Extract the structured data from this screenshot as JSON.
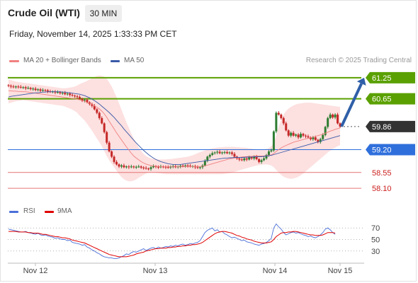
{
  "header": {
    "title": "Crude Oil (WTI)",
    "timeframe": "30 MIN",
    "timestamp": "Friday, November 14, 2025 1:33:33 PM CET"
  },
  "legend": {
    "ma20_label": "MA 20 + Bollinger Bands",
    "ma50_label": "MA 50",
    "rsi_label": "RSI",
    "rsi_ma_label": "9MA",
    "credit": "Research © 2025 Trading Central"
  },
  "colors": {
    "ma20": "#f08080",
    "ma50": "#3a5aa8",
    "bollinger_fill": "#fde0e0",
    "candle_up": "#2e7d32",
    "candle_down": "#c62828",
    "resistance": "#5aa000",
    "current": "#333333",
    "pivot": "#2f6fdc",
    "support": "#e57373",
    "rsi": "#4a6fd8",
    "rsi_ma": "#e00000",
    "arrow": "#2f5fa8"
  },
  "chart_data": [
    {
      "type": "candlestick",
      "x_ticks": [
        "Nov 12",
        "Nov 13",
        "Nov 14",
        "Nov 15"
      ],
      "ylim": [
        57.9,
        61.45
      ],
      "levels": [
        {
          "value": 61.25,
          "label": "61.25",
          "kind": "resistance"
        },
        {
          "value": 60.65,
          "label": "60.65",
          "kind": "resistance"
        },
        {
          "value": 59.86,
          "label": "59.86",
          "kind": "current"
        },
        {
          "value": 59.2,
          "label": "59.20",
          "kind": "pivot"
        },
        {
          "value": 58.55,
          "label": "58.55",
          "kind": "support"
        },
        {
          "value": 58.1,
          "label": "58.10",
          "kind": "support"
        }
      ],
      "close": [
        61.02,
        61.0,
        60.98,
        61.0,
        60.99,
        60.97,
        60.98,
        60.95,
        60.96,
        60.93,
        60.94,
        60.9,
        60.92,
        60.88,
        60.9,
        60.89,
        60.86,
        60.85,
        60.86,
        60.83,
        60.84,
        60.81,
        60.82,
        60.78,
        60.8,
        60.76,
        60.74,
        60.72,
        60.7,
        60.65,
        60.6,
        60.62,
        60.55,
        60.5,
        60.45,
        60.35,
        60.25,
        60.1,
        59.95,
        59.7,
        59.4,
        59.15,
        59.0,
        58.85,
        58.78,
        58.72,
        58.75,
        58.7,
        58.72,
        58.7,
        58.72,
        58.7,
        58.71,
        58.72,
        58.69,
        58.68,
        58.66,
        58.65,
        58.7,
        58.73,
        58.71,
        58.7,
        58.72,
        58.71,
        58.7,
        58.69,
        58.72,
        58.73,
        58.7,
        58.72,
        58.74,
        58.73,
        58.75,
        58.74,
        58.72,
        58.73,
        58.7,
        58.68,
        58.7,
        58.75,
        58.88,
        59.0,
        59.05,
        59.1,
        59.12,
        59.14,
        59.1,
        59.12,
        59.13,
        59.1,
        59.12,
        59.08,
        59.0,
        58.95,
        58.92,
        58.9,
        58.95,
        58.92,
        58.98,
        58.95,
        59.0,
        58.93,
        58.85,
        58.9,
        58.95,
        59.05,
        59.15,
        59.18,
        59.72,
        60.25,
        60.2,
        60.1,
        59.95,
        59.75,
        59.6,
        59.68,
        59.6,
        59.63,
        59.55,
        59.65,
        59.6,
        59.58,
        59.55,
        59.5,
        59.55,
        59.48,
        59.42,
        59.5,
        59.62,
        59.85,
        60.1,
        60.2,
        60.12,
        60.2,
        59.95,
        59.86
      ],
      "ma20": [
        60.88,
        60.88,
        60.87,
        60.87,
        60.86,
        60.86,
        60.85,
        60.85,
        60.84,
        60.83,
        60.82,
        60.81,
        60.8,
        60.79,
        60.78,
        60.77,
        60.76,
        60.75,
        60.74,
        60.73,
        60.72,
        60.71,
        60.7,
        60.69,
        60.68,
        60.67,
        60.66,
        60.65,
        60.64,
        60.62,
        60.6,
        60.58,
        60.55,
        60.52,
        60.49,
        60.45,
        60.41,
        60.36,
        60.3,
        60.22,
        60.12,
        60.01,
        59.9,
        59.79,
        59.68,
        59.58,
        59.48,
        59.38,
        59.28,
        59.19,
        59.1,
        59.02,
        58.96,
        58.91,
        58.86,
        58.82,
        58.79,
        58.77,
        58.75,
        58.74,
        58.73,
        58.72,
        58.72,
        58.71,
        58.71,
        58.71,
        58.71,
        58.71,
        58.71,
        58.71,
        58.71,
        58.71,
        58.72,
        58.72,
        58.72,
        58.72,
        58.72,
        58.72,
        58.72,
        58.73,
        58.74,
        58.76,
        58.78,
        58.8,
        58.82,
        58.84,
        58.86,
        58.88,
        58.9,
        58.92,
        58.94,
        58.95,
        58.96,
        58.97,
        58.98,
        58.99,
        59.0,
        59.0,
        59.01,
        59.01,
        59.02,
        59.02,
        59.02,
        59.02,
        59.02,
        59.03,
        59.04,
        59.05,
        59.09,
        59.15,
        59.2,
        59.25,
        59.29,
        59.32,
        59.35,
        59.38,
        59.41,
        59.43,
        59.45,
        59.47,
        59.49,
        59.51,
        59.52,
        59.54,
        59.56,
        59.58,
        59.6,
        59.62,
        59.64,
        59.67,
        59.7,
        59.73,
        59.75,
        59.78,
        59.8,
        59.82
      ],
      "ma50": [
        60.7,
        60.72,
        60.73,
        60.74,
        60.75,
        60.76,
        60.77,
        60.78,
        60.79,
        60.8,
        60.81,
        60.82,
        60.82,
        60.83,
        60.84,
        60.84,
        60.85,
        60.85,
        60.85,
        60.85,
        60.85,
        60.85,
        60.84,
        60.84,
        60.83,
        60.82,
        60.81,
        60.8,
        60.79,
        60.78,
        60.76,
        60.74,
        60.71,
        60.68,
        60.64,
        60.6,
        60.55,
        60.5,
        60.44,
        60.38,
        60.32,
        60.26,
        60.19,
        60.12,
        60.04,
        59.96,
        59.88,
        59.79,
        59.71,
        59.63,
        59.55,
        59.47,
        59.39,
        59.32,
        59.25,
        59.18,
        59.12,
        59.06,
        59.01,
        58.96,
        58.92,
        58.89,
        58.86,
        58.84,
        58.82,
        58.8,
        58.79,
        58.78,
        58.78,
        58.78,
        58.78,
        58.79,
        58.8,
        58.81,
        58.82,
        58.83,
        58.84,
        58.85,
        58.86,
        58.87,
        58.88,
        58.89,
        58.9,
        58.91,
        58.92,
        58.93,
        58.94,
        58.95,
        58.96,
        58.96,
        58.97,
        58.97,
        58.98,
        58.98,
        58.98,
        58.98,
        58.98,
        58.99,
        58.99,
        58.99,
        59.0,
        59.0,
        59.0,
        59.0,
        59.01,
        59.02,
        59.03,
        59.04,
        59.06,
        59.08,
        59.1,
        59.12,
        59.14,
        59.16,
        59.18,
        59.2,
        59.22,
        59.24,
        59.26,
        59.28,
        59.3,
        59.32,
        59.34,
        59.36,
        59.38,
        59.4,
        59.42,
        59.44,
        59.46,
        59.48,
        59.5,
        59.52,
        59.54,
        59.56,
        59.58,
        59.6
      ],
      "bb_upper": [
        61.2,
        61.18,
        61.16,
        61.14,
        61.13,
        61.12,
        61.11,
        61.1,
        61.09,
        61.08,
        61.07,
        61.06,
        61.05,
        61.04,
        61.03,
        61.02,
        61.01,
        61.0,
        60.99,
        60.98,
        60.97,
        60.96,
        60.95,
        60.95,
        60.96,
        60.97,
        60.98,
        61.0,
        61.03,
        61.07,
        61.1,
        61.13,
        61.16,
        61.2,
        61.24,
        61.27,
        61.3,
        61.31,
        61.3,
        61.28,
        61.22,
        61.12,
        61.0,
        60.85,
        60.7,
        60.52,
        60.34,
        60.16,
        59.98,
        59.82,
        59.66,
        59.52,
        59.38,
        59.26,
        59.16,
        59.08,
        59.02,
        58.98,
        58.95,
        58.94,
        58.93,
        58.92,
        58.92,
        58.92,
        58.92,
        58.93,
        58.93,
        58.94,
        58.95,
        58.96,
        58.97,
        58.98,
        58.99,
        59.0,
        59.02,
        59.04,
        59.07,
        59.1,
        59.13,
        59.15,
        59.18,
        59.2,
        59.22,
        59.24,
        59.25,
        59.26,
        59.27,
        59.27,
        59.28,
        59.28,
        59.28,
        59.28,
        59.28,
        59.27,
        59.27,
        59.26,
        59.26,
        59.25,
        59.24,
        59.23,
        59.22,
        59.21,
        59.2,
        59.2,
        59.21,
        59.22,
        59.25,
        59.3,
        59.4,
        59.6,
        59.85,
        60.05,
        60.2,
        60.3,
        60.37,
        60.42,
        60.46,
        60.49,
        60.51,
        60.52,
        60.53,
        60.54,
        60.54,
        60.54,
        60.53,
        60.52,
        60.51,
        60.5,
        60.49,
        60.48,
        60.47,
        60.46,
        60.45,
        60.44,
        60.43,
        60.42
      ],
      "bb_lower": [
        60.52,
        60.54,
        60.56,
        60.58,
        60.59,
        60.6,
        60.61,
        60.6,
        60.59,
        60.58,
        60.57,
        60.56,
        60.55,
        60.54,
        60.53,
        60.52,
        60.51,
        60.5,
        60.49,
        60.48,
        60.47,
        60.46,
        60.45,
        60.43,
        60.4,
        60.37,
        60.34,
        60.3,
        60.25,
        60.17,
        60.1,
        60.03,
        59.94,
        59.84,
        59.74,
        59.63,
        59.52,
        59.41,
        59.3,
        59.16,
        59.02,
        58.9,
        58.8,
        58.7,
        58.6,
        58.5,
        58.42,
        58.36,
        58.32,
        58.3,
        58.3,
        58.32,
        58.35,
        58.4,
        58.44,
        58.48,
        58.52,
        58.55,
        58.56,
        58.55,
        58.54,
        58.53,
        58.52,
        58.51,
        58.5,
        58.5,
        58.5,
        58.5,
        58.5,
        58.5,
        58.5,
        58.5,
        58.5,
        58.5,
        58.5,
        58.5,
        58.5,
        58.5,
        58.5,
        58.5,
        58.5,
        58.5,
        58.5,
        58.5,
        58.5,
        58.5,
        58.5,
        58.5,
        58.51,
        58.52,
        58.53,
        58.55,
        58.57,
        58.59,
        58.61,
        58.63,
        58.65,
        58.67,
        58.69,
        58.71,
        58.73,
        58.75,
        58.76,
        58.77,
        58.78,
        58.78,
        58.77,
        58.75,
        58.7,
        58.62,
        58.55,
        58.48,
        58.43,
        58.4,
        58.38,
        58.37,
        58.38,
        58.4,
        58.43,
        58.47,
        58.52,
        58.58,
        58.64,
        58.7,
        58.76,
        58.82,
        58.88,
        58.94,
        59.0,
        59.06,
        59.12,
        59.17,
        59.22,
        59.26,
        59.3,
        59.33
      ],
      "forecast_arrow": {
        "from": 59.86,
        "to": 61.25
      }
    },
    {
      "type": "line",
      "name": "RSI",
      "ylim": [
        15,
        85
      ],
      "y_ticks": [
        70,
        50,
        30
      ],
      "rsi": [
        68,
        67,
        66,
        65,
        64,
        63,
        63,
        64,
        62,
        61,
        60,
        59,
        61,
        58,
        57,
        58,
        56,
        55,
        54,
        52,
        53,
        51,
        50,
        50,
        48,
        49,
        45,
        44,
        43,
        42,
        40,
        41,
        37,
        35,
        32,
        30,
        27,
        25,
        22,
        20,
        19,
        18,
        18,
        17,
        17,
        18,
        20,
        22,
        25,
        24,
        27,
        29,
        28,
        30,
        32,
        34,
        31,
        33,
        35,
        36,
        34,
        37,
        35,
        36,
        38,
        37,
        39,
        38,
        40,
        39,
        41,
        42,
        40,
        41,
        43,
        42,
        44,
        45,
        48,
        55,
        62,
        66,
        68,
        70,
        65,
        67,
        63,
        64,
        60,
        58,
        55,
        53,
        54,
        52,
        50,
        48,
        49,
        46,
        45,
        44,
        42,
        41,
        40,
        42,
        43,
        45,
        48,
        52,
        70,
        77,
        72,
        68,
        62,
        58,
        60,
        62,
        63,
        61,
        62,
        60,
        58,
        57,
        55,
        56,
        54,
        53,
        55,
        58,
        62,
        68,
        70,
        67,
        62,
        59
      ],
      "rsi_ma": [
        64,
        64,
        64,
        64,
        63,
        63,
        63,
        63,
        62,
        62,
        61,
        61,
        61,
        60,
        59,
        59,
        58,
        57,
        56,
        55,
        55,
        54,
        53,
        53,
        52,
        51,
        49,
        48,
        47,
        46,
        45,
        44,
        42,
        40,
        38,
        36,
        34,
        32,
        30,
        28,
        26,
        24,
        23,
        22,
        21,
        20,
        20,
        20,
        20,
        21,
        22,
        23,
        25,
        26,
        27,
        28,
        30,
        31,
        32,
        33,
        34,
        34,
        35,
        35,
        35,
        36,
        36,
        37,
        37,
        38,
        38,
        39,
        39,
        40,
        40,
        41,
        41,
        42,
        43,
        45,
        48,
        51,
        54,
        57,
        60,
        62,
        63,
        64,
        64,
        63,
        62,
        61,
        59,
        57,
        56,
        54,
        53,
        51,
        50,
        49,
        47,
        46,
        45,
        44,
        44,
        44,
        45,
        46,
        50,
        55,
        58,
        61,
        62,
        62,
        63,
        63,
        64,
        64,
        63,
        62,
        61,
        60,
        59,
        58,
        58,
        57,
        57,
        57,
        58,
        60,
        62,
        62,
        62,
        61
      ]
    }
  ]
}
